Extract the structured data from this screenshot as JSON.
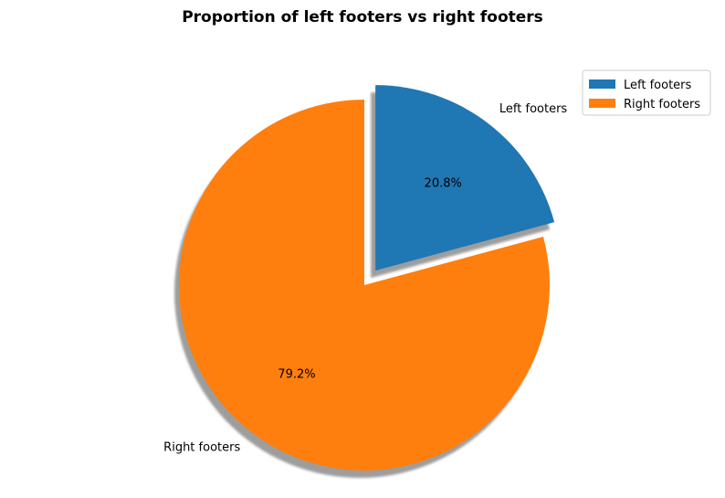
{
  "chart_data": {
    "type": "pie",
    "title": "Proportion of left footers vs right footers",
    "categories": [
      "Left footers",
      "Right footers"
    ],
    "values": [
      20.8,
      79.2
    ],
    "percent_labels": [
      "20.8%",
      "79.2%"
    ],
    "colors": [
      "#1f77b4",
      "#ff7f0e"
    ],
    "exploded": [
      true,
      false
    ],
    "shadow": true,
    "start_angle_deg": 90,
    "legend": {
      "placement": "top-right",
      "entries": [
        "Left footers",
        "Right footers"
      ]
    }
  }
}
